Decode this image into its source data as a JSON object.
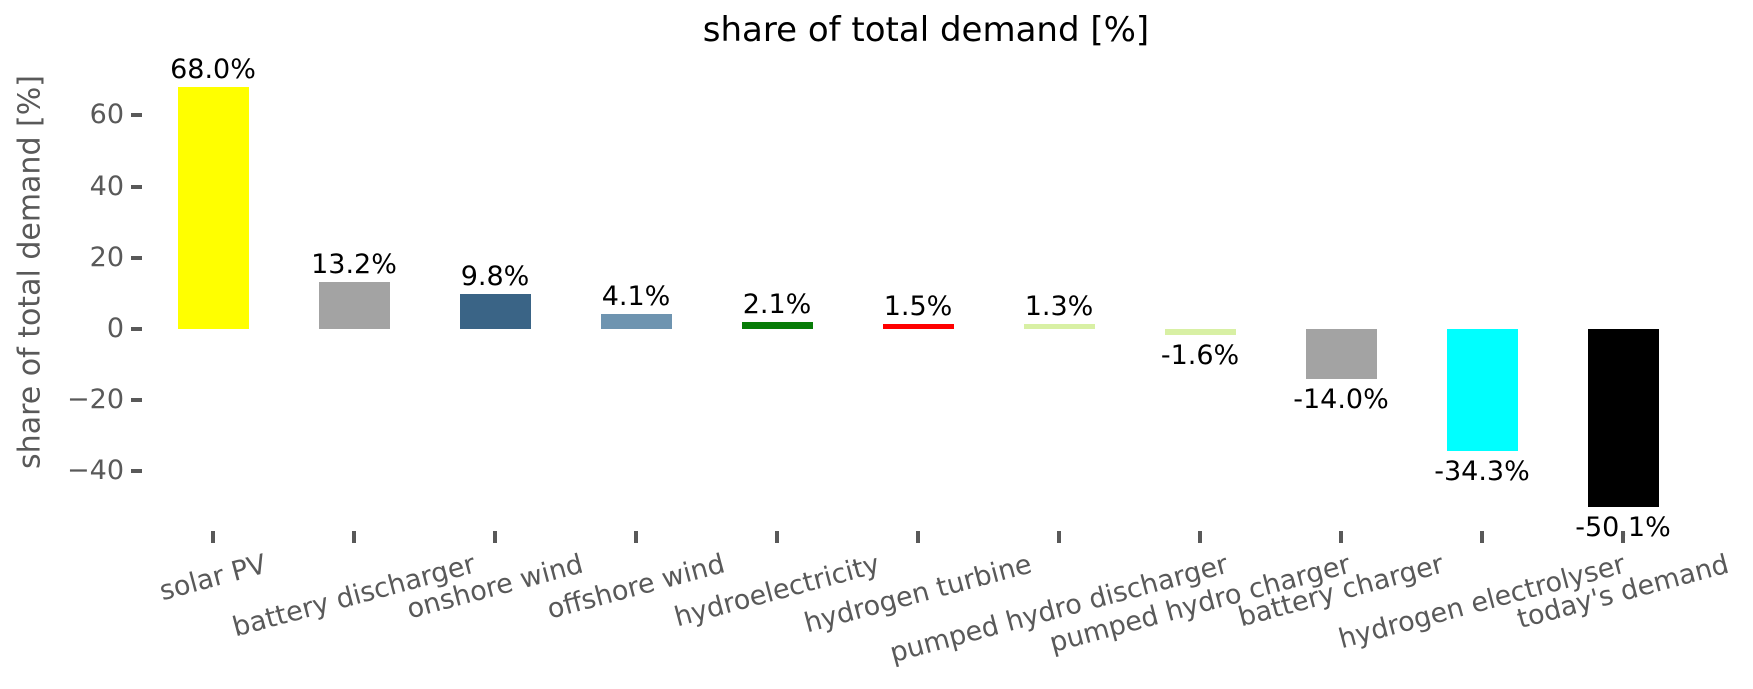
{
  "chart_data": {
    "type": "bar",
    "title": "share of total demand [%]",
    "ylabel": "share of total demand [%]",
    "xlabel": "",
    "categories": [
      "solar PV",
      "battery discharger",
      "onshore wind",
      "offshore wind",
      "hydroelectricity",
      "hydrogen turbine",
      "pumped hydro discharger",
      "pumped hydro charger",
      "battery charger",
      "hydrogen electrolyser",
      "today's demand"
    ],
    "values": [
      68.0,
      13.2,
      9.8,
      4.1,
      2.1,
      1.5,
      1.3,
      -1.6,
      -14.0,
      -34.3,
      -50.1
    ],
    "value_labels": [
      "68.0%",
      "13.2%",
      "9.8%",
      "4.1%",
      "2.1%",
      "1.5%",
      "1.3%",
      "-1.6%",
      "-14.0%",
      "-34.3%",
      "-50.1%"
    ],
    "bar_colors": [
      "#FFFF00",
      "#A3A3A3",
      "#3A6486",
      "#6E94B0",
      "#077C07",
      "#FF0000",
      "#D8F0A4",
      "#D8F0A4",
      "#A3A3A3",
      "#00FFFF",
      "#000000"
    ],
    "yticks": [
      60,
      40,
      20,
      0,
      -20,
      -40
    ],
    "ytick_labels": [
      "60",
      "40",
      "20",
      "0",
      "−20",
      "−40"
    ],
    "ylim": [
      -57,
      75
    ],
    "grid": false,
    "legend": "none",
    "title_color": "#000000",
    "axis_text_color": "#595959"
  }
}
